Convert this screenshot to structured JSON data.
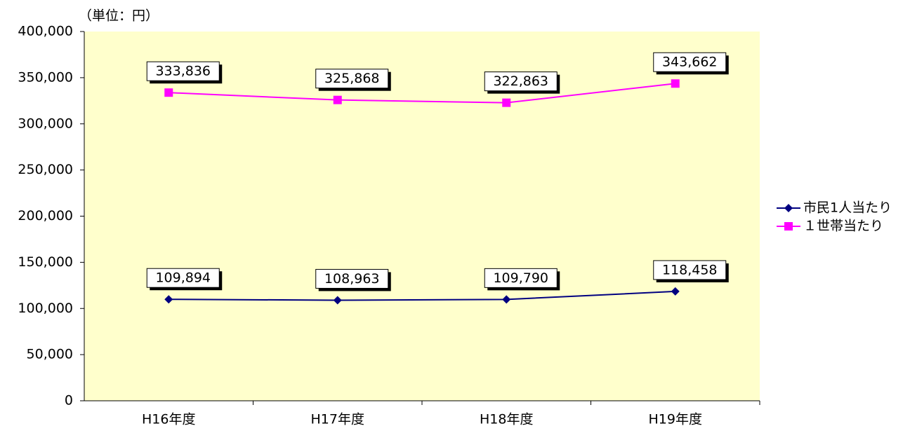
{
  "chart_data": {
    "type": "line",
    "unit_label": "（単位：円）",
    "categories": [
      "H16年度",
      "H17年度",
      "H18年度",
      "H19年度"
    ],
    "series": [
      {
        "name": "市民1人当たり",
        "color": "#000080",
        "marker": "diamond",
        "values": [
          109894,
          108963,
          109790,
          118458
        ],
        "value_labels": [
          "109,894",
          "108,963",
          "109,790",
          "118,458"
        ]
      },
      {
        "name": "１世帯当たり",
        "color": "#ff00ff",
        "marker": "square",
        "values": [
          333836,
          325868,
          322863,
          343662
        ],
        "value_labels": [
          "333,836",
          "325,868",
          "322,863",
          "343,662"
        ]
      }
    ],
    "ylim": [
      0,
      400000
    ],
    "yticks": [
      0,
      {
        "value": 50000,
        "label": "50,000"
      },
      {
        "value": 100000,
        "label": "100,000"
      },
      {
        "value": 150000,
        "label": "150,000"
      },
      {
        "value": 200000,
        "label": "200,000"
      },
      {
        "value": 250000,
        "label": "250,000"
      },
      {
        "value": 300000,
        "label": "300,000"
      },
      {
        "value": 350000,
        "label": "350,000"
      },
      {
        "value": 400000,
        "label": "400,000"
      }
    ],
    "legend": "right",
    "plot_background": "#ffffcc"
  }
}
